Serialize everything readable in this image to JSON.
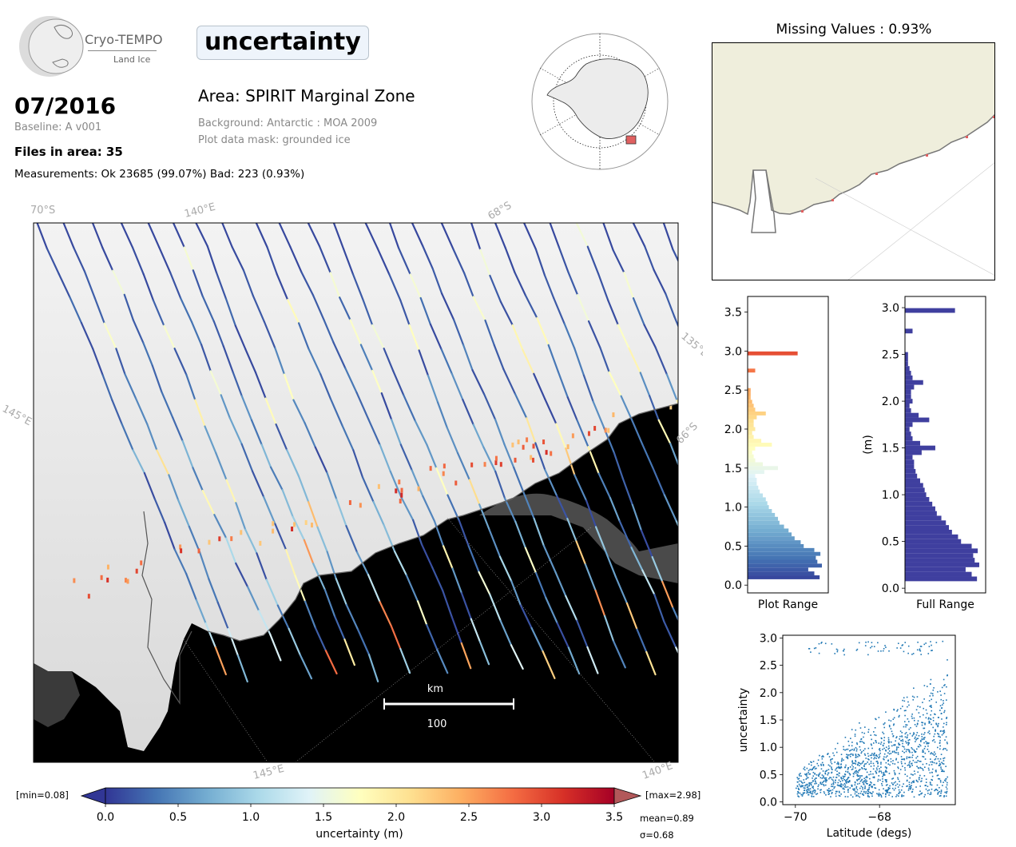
{
  "header": {
    "logo_title": "Cryo-TEMPO",
    "logo_subtitle": "Land Ice",
    "parameter": "uncertainty",
    "date": "07/2016",
    "baseline": "Baseline: A v001",
    "files_in_area": "Files in area: 35",
    "measurements": "Measurements: Ok 23685 (99.07%) Bad: 223 (0.93%)",
    "area": "Area: SPIRIT Marginal Zone",
    "background": "Background: Antarctic : MOA 2009",
    "plot_mask": "Plot data mask: grounded ice"
  },
  "inset": {
    "title": "Missing Values : 0.93%"
  },
  "map": {
    "grid_labels": [
      "70°S",
      "140°E",
      "68°S",
      "135°E",
      "145°E",
      "66°S",
      "145°E",
      "140°E"
    ],
    "scalebar_unit": "km",
    "scalebar_value": "100"
  },
  "colorbar": {
    "min_label": "[min=0.08]",
    "max_label": "[max=2.98]",
    "ticks": [
      "0.0",
      "0.5",
      "1.0",
      "1.5",
      "2.0",
      "2.5",
      "3.0",
      "3.5"
    ],
    "label": "uncertainty (m)",
    "mean": "mean=0.89",
    "sigma": "σ=0.68",
    "range": [
      0,
      3.5
    ],
    "colormap": "RdYlBu_r"
  },
  "colors": {
    "hist_full": "#3f3f9f",
    "scatter": "#1f77b4",
    "land": "#efeedc",
    "ocean": "#000000"
  },
  "chart_data": [
    {
      "type": "bar",
      "orientation": "horizontal",
      "xlabel": "Plot Range",
      "ylim": [
        -0.1,
        3.7
      ],
      "yticks": [
        "0.0",
        "0.5",
        "1.0",
        "1.5",
        "2.0",
        "2.5",
        "3.0",
        "3.5"
      ],
      "bins": [
        0.1,
        0.15,
        0.2,
        0.25,
        0.3,
        0.35,
        0.4,
        0.45,
        0.5,
        0.55,
        0.6,
        0.65,
        0.7,
        0.75,
        0.8,
        0.85,
        0.9,
        0.95,
        1.0,
        1.05,
        1.1,
        1.15,
        1.2,
        1.25,
        1.3,
        1.35,
        1.4,
        1.45,
        1.5,
        1.55,
        1.6,
        1.65,
        1.7,
        1.75,
        1.8,
        1.85,
        1.9,
        1.95,
        2.0,
        2.05,
        2.1,
        2.15,
        2.2,
        2.25,
        2.3,
        2.35,
        2.4,
        2.45,
        2.5,
        2.75,
        2.97
      ],
      "values": [
        95,
        88,
        80,
        98,
        92,
        90,
        96,
        88,
        74,
        70,
        62,
        58,
        54,
        48,
        42,
        40,
        36,
        32,
        28,
        26,
        24,
        20,
        16,
        14,
        12,
        12,
        10,
        22,
        40,
        20,
        10,
        8,
        6,
        10,
        32,
        18,
        8,
        6,
        10,
        8,
        8,
        12,
        24,
        10,
        8,
        6,
        4,
        4,
        4,
        10,
        66
      ]
    },
    {
      "type": "bar",
      "orientation": "horizontal",
      "xlabel": "Full Range",
      "ylabel": "(m)",
      "ylim": [
        -0.05,
        3.12
      ],
      "yticks": [
        "0.0",
        "0.5",
        "1.0",
        "1.5",
        "2.0",
        "2.5",
        "3.0"
      ],
      "bins": [
        0.1,
        0.15,
        0.2,
        0.25,
        0.3,
        0.35,
        0.4,
        0.45,
        0.5,
        0.55,
        0.6,
        0.65,
        0.7,
        0.75,
        0.8,
        0.85,
        0.9,
        0.95,
        1.0,
        1.05,
        1.1,
        1.15,
        1.2,
        1.25,
        1.3,
        1.35,
        1.4,
        1.45,
        1.5,
        1.55,
        1.6,
        1.65,
        1.7,
        1.75,
        1.8,
        1.85,
        1.9,
        1.95,
        2.0,
        2.05,
        2.1,
        2.15,
        2.2,
        2.25,
        2.3,
        2.35,
        2.4,
        2.45,
        2.5,
        2.75,
        2.97
      ],
      "values": [
        95,
        88,
        80,
        98,
        92,
        90,
        96,
        88,
        74,
        70,
        62,
        58,
        54,
        48,
        42,
        40,
        36,
        32,
        28,
        26,
        24,
        20,
        16,
        14,
        12,
        12,
        10,
        22,
        40,
        20,
        10,
        8,
        6,
        10,
        32,
        18,
        8,
        6,
        10,
        8,
        8,
        12,
        24,
        10,
        8,
        6,
        4,
        4,
        4,
        10,
        66
      ]
    },
    {
      "type": "scatter",
      "xlabel": "Latitude (degs)",
      "ylabel": "uncertainty",
      "xlim": [
        -70.3,
        -66.2
      ],
      "ylim": [
        -0.05,
        3.05
      ],
      "xticks": [
        "−70",
        "−68"
      ],
      "yticks": [
        "0.0",
        "0.5",
        "1.0",
        "1.5",
        "2.0",
        "2.5",
        "3.0"
      ]
    }
  ]
}
